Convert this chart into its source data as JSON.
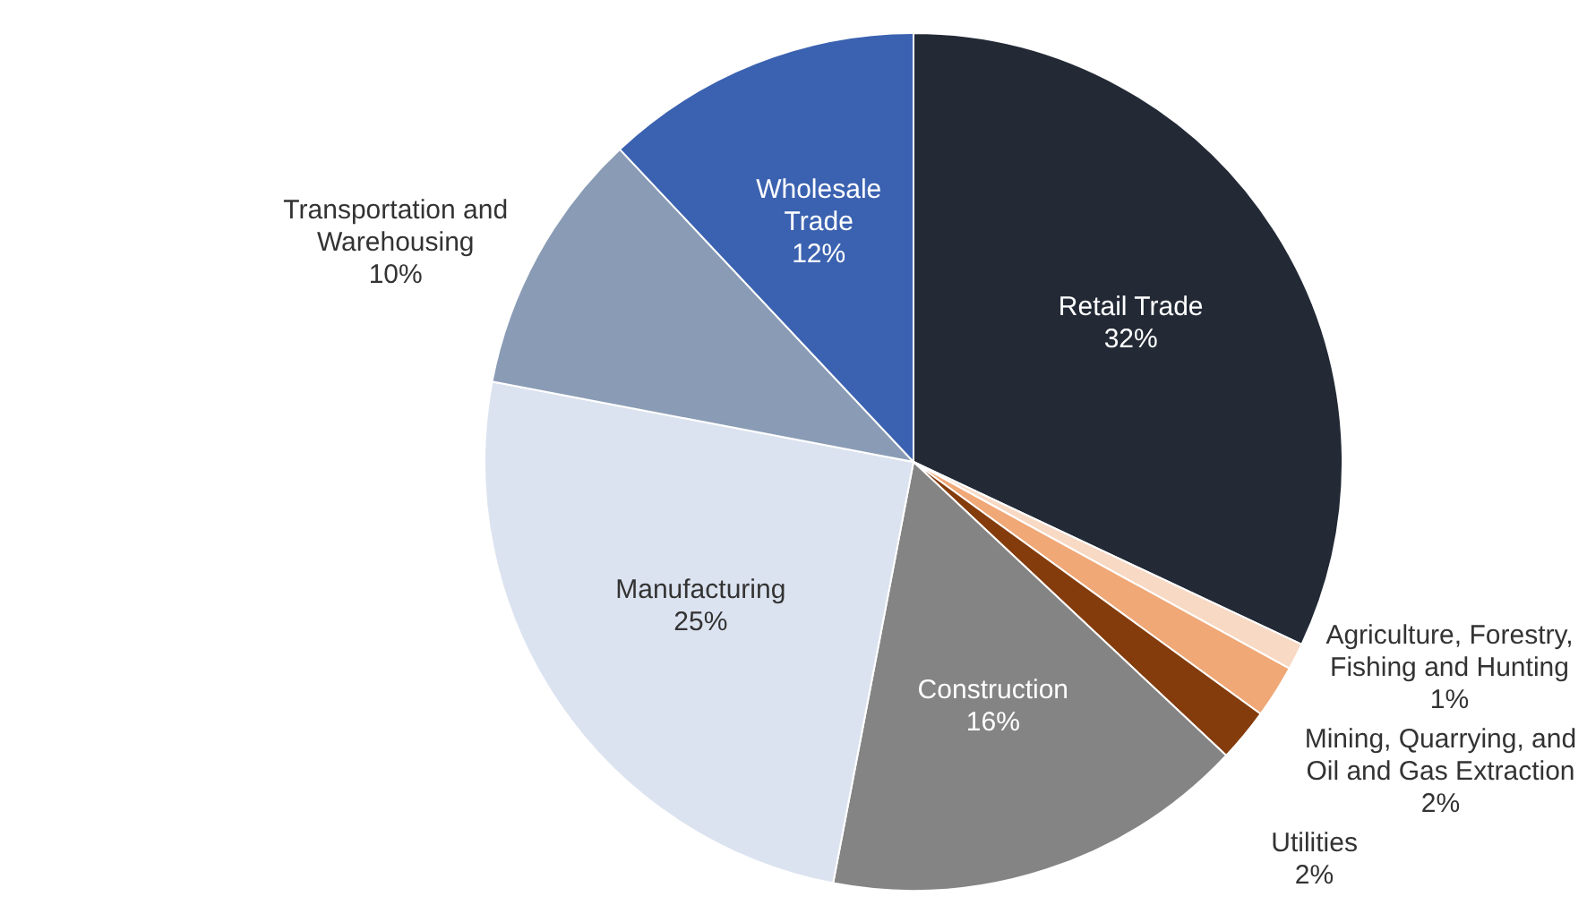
{
  "chart_data": {
    "type": "pie",
    "categories": [
      "Retail Trade",
      "Agriculture, Forestry, Fishing and Hunting",
      "Mining, Quarrying, and Oil and Gas Extraction",
      "Utilities",
      "Construction",
      "Manufacturing",
      "Transportation and Warehousing",
      "Wholesale Trade"
    ],
    "values": [
      32,
      1,
      2,
      2,
      16,
      25,
      10,
      12
    ],
    "value_labels": [
      "32%",
      "1%",
      "2%",
      "2%",
      "16%",
      "25%",
      "10%",
      "12%"
    ],
    "colors": [
      "#232a36",
      "#f8d9c4",
      "#f0a877",
      "#843c0c",
      "#848484",
      "#dce3f0",
      "#8a9cb5",
      "#3b62b0"
    ],
    "legend": false
  }
}
